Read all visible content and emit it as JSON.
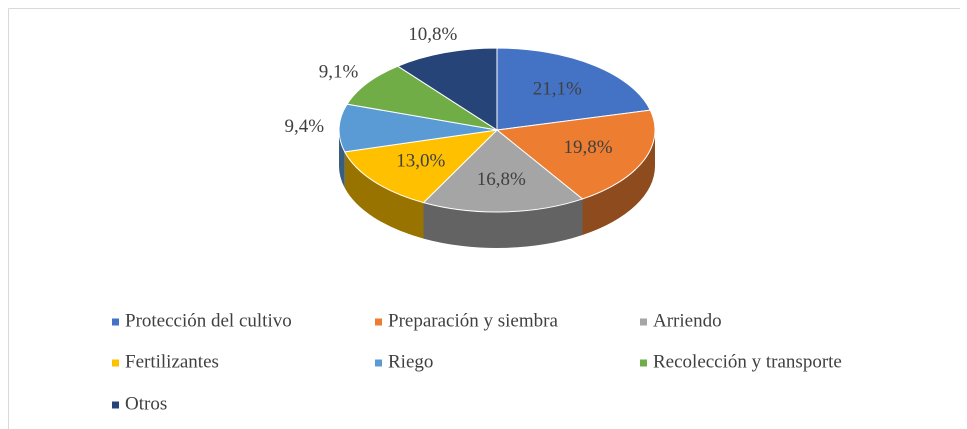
{
  "chart_data": {
    "type": "pie3d",
    "categories": [
      "Protección del cultivo",
      "Preparación y siembra",
      "Arriendo",
      "Fertilizantes",
      "Riego",
      "Recolección y transporte",
      "Otros"
    ],
    "values": [
      21.1,
      19.8,
      16.8,
      13.0,
      9.4,
      9.1,
      10.8
    ],
    "value_labels": [
      "21,1%",
      "19,8%",
      "16,8%",
      "13,0%",
      "9,4%",
      "9,1%",
      "10,8%"
    ],
    "colors": [
      "#4472c4",
      "#ed7d31",
      "#a5a5a5",
      "#ffc000",
      "#5b9bd5",
      "#70ad47",
      "#264478"
    ],
    "legend": "bottom"
  }
}
